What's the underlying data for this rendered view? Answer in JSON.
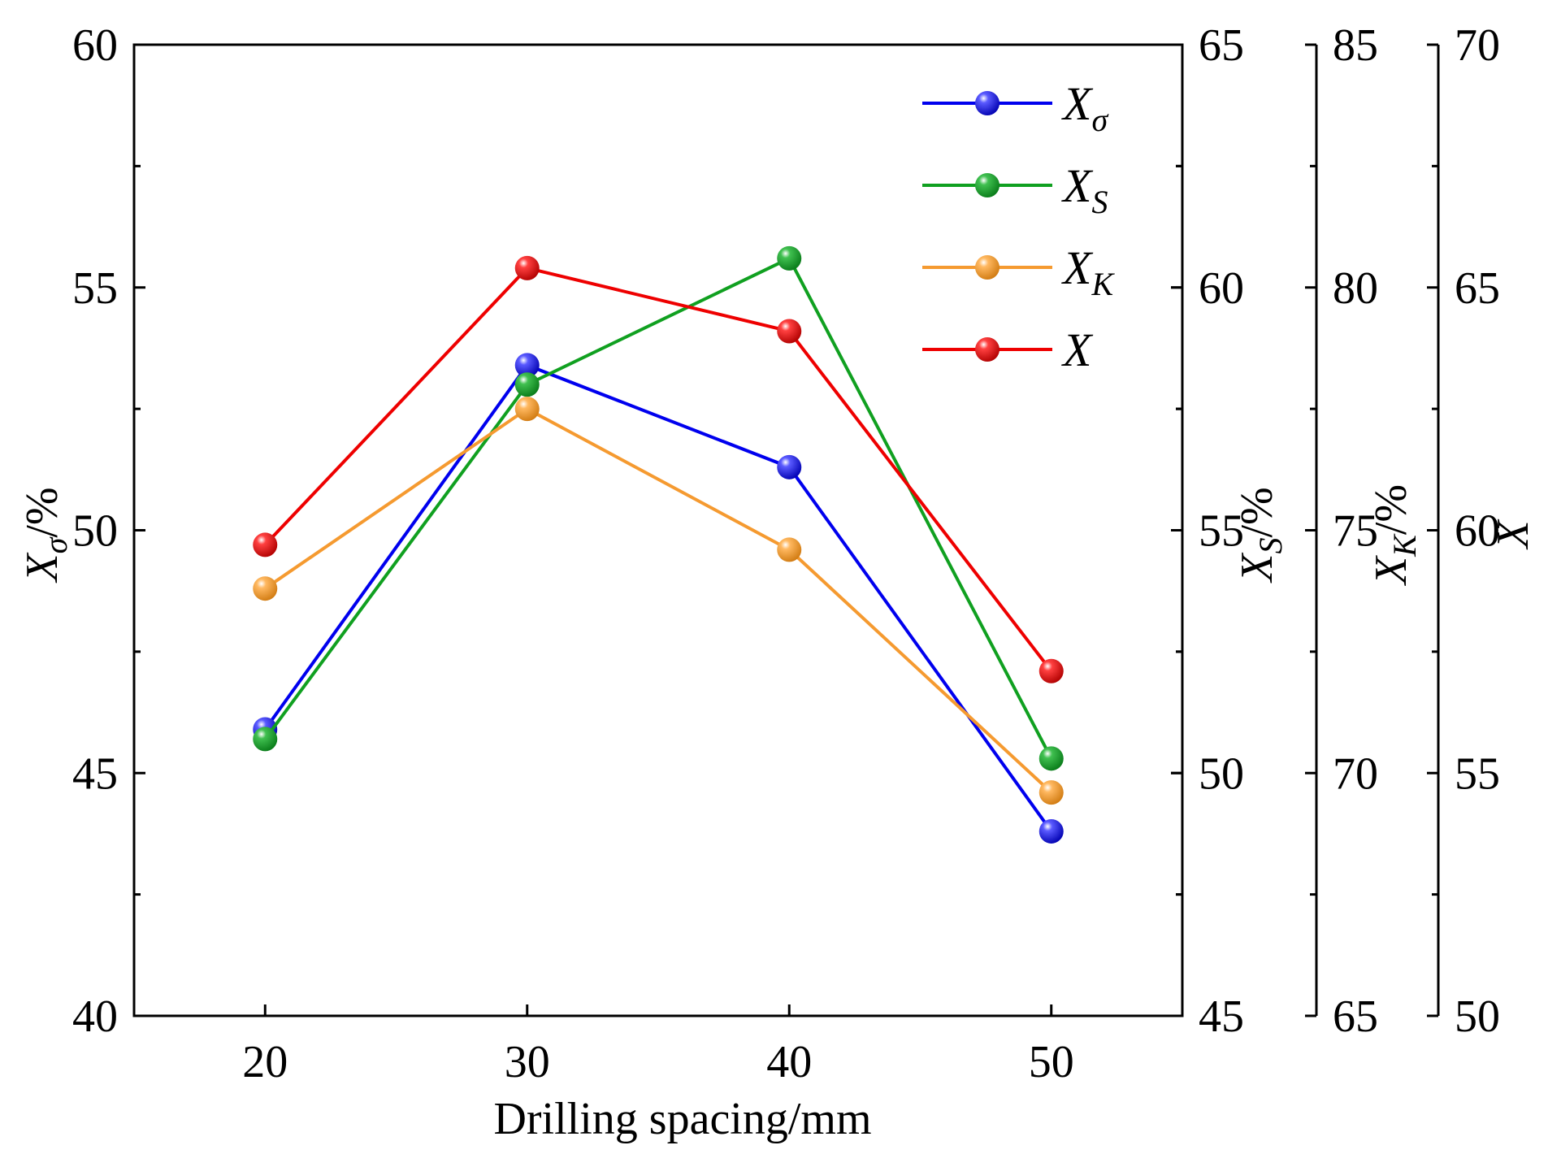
{
  "chart_data": {
    "type": "line",
    "xlabel": "Drilling spacing/mm",
    "x": [
      20,
      30,
      40,
      50
    ],
    "xlim": [
      15,
      55
    ],
    "xticks": [
      "20",
      "30",
      "40",
      "50"
    ],
    "axes": [
      {
        "id": "ax1",
        "label_main": "X",
        "label_sub": "σ",
        "label_rest": "/%",
        "ylim": [
          40,
          60
        ],
        "ticks": [
          "40",
          "45",
          "50",
          "55",
          "60"
        ]
      },
      {
        "id": "ax2",
        "label_main": "X",
        "label_sub": "S",
        "label_rest": "/%",
        "ylim": [
          45,
          65
        ],
        "ticks": [
          "45",
          "50",
          "55",
          "60",
          "65"
        ]
      },
      {
        "id": "ax3",
        "label_main": "X",
        "label_sub": "K",
        "label_rest": "/%",
        "ylim": [
          65,
          85
        ],
        "ticks": [
          "65",
          "70",
          "75",
          "80",
          "85"
        ]
      },
      {
        "id": "ax4",
        "label_main": "X",
        "label_sub": "",
        "label_rest": "",
        "ylim": [
          50,
          70
        ],
        "ticks": [
          "50",
          "55",
          "60",
          "65",
          "70"
        ]
      }
    ],
    "series": [
      {
        "name": "Xσ",
        "legend_main": "X",
        "legend_sub": "σ",
        "axis": 0,
        "color": "#0000ee",
        "values": [
          45.9,
          53.4,
          51.3,
          43.8
        ]
      },
      {
        "name": "XS",
        "legend_main": "X",
        "legend_sub": "S",
        "axis": 1,
        "color": "#10a020",
        "values": [
          50.7,
          58.0,
          60.6,
          50.3
        ]
      },
      {
        "name": "XK",
        "legend_main": "X",
        "legend_sub": "K",
        "axis": 2,
        "color": "#f59a30",
        "values": [
          73.8,
          77.5,
          74.6,
          69.6
        ]
      },
      {
        "name": "X",
        "legend_main": "X",
        "legend_sub": "",
        "axis": 3,
        "color": "#ee0000",
        "values": [
          59.7,
          65.4,
          64.1,
          57.1
        ]
      }
    ]
  }
}
